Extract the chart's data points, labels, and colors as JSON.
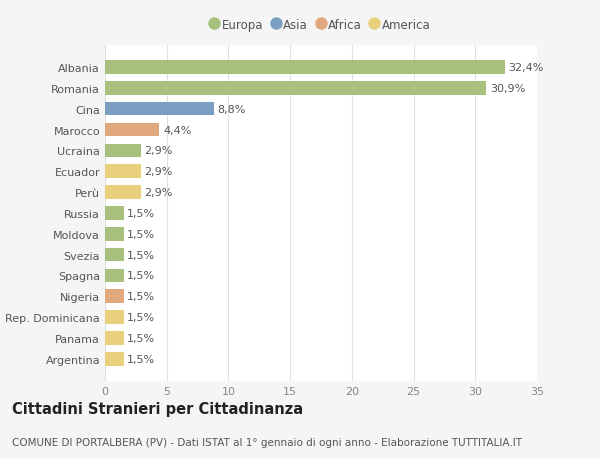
{
  "categories": [
    "Albania",
    "Romania",
    "Cina",
    "Marocco",
    "Ucraina",
    "Ecuador",
    "Perù",
    "Russia",
    "Moldova",
    "Svezia",
    "Spagna",
    "Nigeria",
    "Rep. Dominicana",
    "Panama",
    "Argentina"
  ],
  "values": [
    32.4,
    30.9,
    8.8,
    4.4,
    2.9,
    2.9,
    2.9,
    1.5,
    1.5,
    1.5,
    1.5,
    1.5,
    1.5,
    1.5,
    1.5
  ],
  "labels": [
    "32,4%",
    "30,9%",
    "8,8%",
    "4,4%",
    "2,9%",
    "2,9%",
    "2,9%",
    "1,5%",
    "1,5%",
    "1,5%",
    "1,5%",
    "1,5%",
    "1,5%",
    "1,5%",
    "1,5%"
  ],
  "continents": [
    "Europa",
    "Europa",
    "Asia",
    "Africa",
    "Europa",
    "America",
    "America",
    "Europa",
    "Europa",
    "Europa",
    "Europa",
    "Africa",
    "America",
    "America",
    "America"
  ],
  "colors": {
    "Europa": "#a8c07e",
    "Asia": "#7b9fc2",
    "Africa": "#e0a87c",
    "America": "#e8d07c"
  },
  "legend_order": [
    "Europa",
    "Asia",
    "Africa",
    "America"
  ],
  "xlim": [
    0,
    35
  ],
  "xticks": [
    0,
    5,
    10,
    15,
    20,
    25,
    30,
    35
  ],
  "title": "Cittadini Stranieri per Cittadinanza",
  "subtitle": "COMUNE DI PORTALBERA (PV) - Dati ISTAT al 1° gennaio di ogni anno - Elaborazione TUTTITALIA.IT",
  "bg_color": "#f5f5f5",
  "bar_bg_color": "#ffffff",
  "grid_color": "#e0e0e0",
  "label_fontsize": 8.0,
  "title_fontsize": 10.5,
  "subtitle_fontsize": 7.5
}
